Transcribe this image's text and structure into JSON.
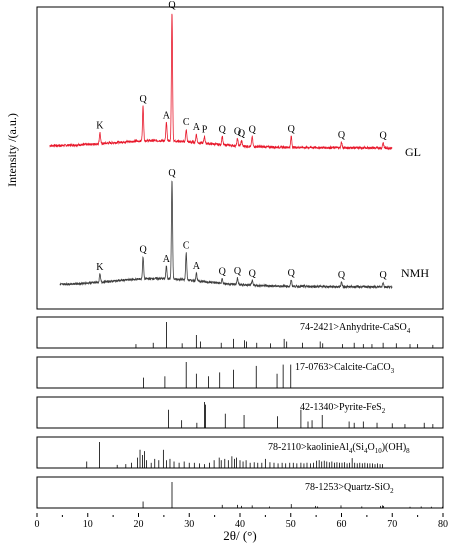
{
  "chart_data": {
    "type": "line",
    "ylabel": "Intensity /(a.u.)",
    "xlabel": "2θ/ (°)",
    "xlim": [
      0,
      80
    ],
    "x_ticks": [
      "0",
      "10",
      "20",
      "30",
      "40",
      "50",
      "60",
      "70",
      "80"
    ],
    "grid": false,
    "color_gl": "#e8192c",
    "color_nmh": "#3c3c3c",
    "series": [
      {
        "name": "GL",
        "peaks": [
          {
            "label": "K",
            "x": 12.4,
            "h": 0.08
          },
          {
            "label": "Q",
            "x": 20.9,
            "h": 0.25
          },
          {
            "label": "A",
            "x": 25.5,
            "h": 0.13
          },
          {
            "label": "Q",
            "x": 26.6,
            "h": 0.92
          },
          {
            "label": "C",
            "x": 29.4,
            "h": 0.09
          },
          {
            "label": "A",
            "x": 31.4,
            "h": 0.06
          },
          {
            "label": "P",
            "x": 33.0,
            "h": 0.05
          },
          {
            "label": "Q",
            "x": 36.5,
            "h": 0.06
          },
          {
            "label": "Q",
            "x": 39.5,
            "h": 0.05
          },
          {
            "label": "Q",
            "x": 40.3,
            "h": 0.04
          },
          {
            "label": "Q",
            "x": 42.4,
            "h": 0.07
          },
          {
            "label": "Q",
            "x": 50.1,
            "h": 0.08
          },
          {
            "label": "Q",
            "x": 60.0,
            "h": 0.04
          },
          {
            "label": "Q",
            "x": 68.2,
            "h": 0.04
          }
        ]
      },
      {
        "name": "NMH",
        "peaks": [
          {
            "label": "K",
            "x": 12.4,
            "h": 0.05
          },
          {
            "label": "Q",
            "x": 20.9,
            "h": 0.14
          },
          {
            "label": "A",
            "x": 25.5,
            "h": 0.08
          },
          {
            "label": "Q",
            "x": 26.6,
            "h": 0.62
          },
          {
            "label": "C",
            "x": 29.4,
            "h": 0.17
          },
          {
            "label": "A",
            "x": 31.4,
            "h": 0.05
          },
          {
            "label": "Q",
            "x": 36.5,
            "h": 0.03
          },
          {
            "label": "Q",
            "x": 39.5,
            "h": 0.04
          },
          {
            "label": "Q",
            "x": 42.4,
            "h": 0.03
          },
          {
            "label": "Q",
            "x": 50.1,
            "h": 0.04
          },
          {
            "label": "Q",
            "x": 60.0,
            "h": 0.03
          },
          {
            "label": "Q",
            "x": 68.2,
            "h": 0.03
          }
        ]
      }
    ],
    "reference_patterns": [
      {
        "name_parts": [
          "74-2421>Anhydrite-CaSO",
          "4",
          ""
        ],
        "lines": [
          [
            19.5,
            0.15
          ],
          [
            22.9,
            0.2
          ],
          [
            25.5,
            1.0
          ],
          [
            28.6,
            0.18
          ],
          [
            31.4,
            0.5
          ],
          [
            32.2,
            0.25
          ],
          [
            36.3,
            0.2
          ],
          [
            38.7,
            0.35
          ],
          [
            40.9,
            0.3
          ],
          [
            41.3,
            0.25
          ],
          [
            43.3,
            0.2
          ],
          [
            46.0,
            0.18
          ],
          [
            48.7,
            0.35
          ],
          [
            49.2,
            0.25
          ],
          [
            52.3,
            0.2
          ],
          [
            55.8,
            0.25
          ],
          [
            56.3,
            0.18
          ],
          [
            60.2,
            0.15
          ],
          [
            62.5,
            0.2
          ],
          [
            64.3,
            0.15
          ],
          [
            66.0,
            0.15
          ],
          [
            68.2,
            0.2
          ],
          [
            70.8,
            0.18
          ],
          [
            73.5,
            0.15
          ],
          [
            75.0,
            0.15
          ],
          [
            78.0,
            0.12
          ]
        ]
      },
      {
        "name_parts": [
          "17-0763>Calcite-CaCO",
          "3",
          ""
        ],
        "lines": [
          [
            21.0,
            0.4
          ],
          [
            25.2,
            0.45
          ],
          [
            29.4,
            1.0
          ],
          [
            31.4,
            0.55
          ],
          [
            33.8,
            0.45
          ],
          [
            36.0,
            0.6
          ],
          [
            38.7,
            0.7
          ],
          [
            43.2,
            0.85
          ],
          [
            47.3,
            0.55
          ],
          [
            48.5,
            0.9
          ],
          [
            50.0,
            0.9
          ]
        ]
      },
      {
        "name_parts": [
          "42-1340>Pyrite-FeS",
          "2",
          ""
        ],
        "lines": [
          [
            25.9,
            0.7
          ],
          [
            28.5,
            0.3
          ],
          [
            31.5,
            0.2
          ],
          [
            33.0,
            1.0
          ],
          [
            33.2,
            0.9
          ],
          [
            37.1,
            0.55
          ],
          [
            40.8,
            0.5
          ],
          [
            47.4,
            0.45
          ],
          [
            52.0,
            0.7
          ],
          [
            53.4,
            0.25
          ],
          [
            54.2,
            0.3
          ],
          [
            56.2,
            0.5
          ],
          [
            61.5,
            0.25
          ],
          [
            62.5,
            0.2
          ],
          [
            64.3,
            0.25
          ],
          [
            67.0,
            0.2
          ],
          [
            70.0,
            0.18
          ],
          [
            72.5,
            0.15
          ],
          [
            76.3,
            0.2
          ],
          [
            78.0,
            0.15
          ]
        ]
      },
      {
        "name_parts": [
          "78-2110>kaolinieAl",
          "4",
          "(Si",
          "4",
          "O",
          "10",
          ")(OH)",
          "8",
          ""
        ],
        "lines": [
          [
            9.8,
            0.25
          ],
          [
            12.3,
            1.0
          ],
          [
            15.8,
            0.12
          ],
          [
            17.5,
            0.15
          ],
          [
            18.6,
            0.2
          ],
          [
            19.8,
            0.4
          ],
          [
            20.3,
            0.7
          ],
          [
            20.8,
            0.5
          ],
          [
            21.2,
            0.65
          ],
          [
            21.6,
            0.3
          ],
          [
            22.5,
            0.2
          ],
          [
            23.2,
            0.35
          ],
          [
            24.0,
            0.3
          ],
          [
            24.9,
            0.7
          ],
          [
            25.5,
            0.3
          ],
          [
            26.2,
            0.35
          ],
          [
            27.0,
            0.25
          ],
          [
            28.0,
            0.2
          ],
          [
            29.0,
            0.25
          ],
          [
            30.0,
            0.2
          ],
          [
            31.0,
            0.2
          ],
          [
            32.0,
            0.18
          ],
          [
            33.0,
            0.15
          ],
          [
            34.0,
            0.2
          ],
          [
            34.9,
            0.3
          ],
          [
            35.9,
            0.4
          ],
          [
            36.3,
            0.3
          ],
          [
            37.0,
            0.35
          ],
          [
            37.7,
            0.3
          ],
          [
            38.4,
            0.45
          ],
          [
            38.9,
            0.35
          ],
          [
            39.3,
            0.4
          ],
          [
            40.0,
            0.3
          ],
          [
            40.6,
            0.25
          ],
          [
            41.2,
            0.3
          ],
          [
            42.0,
            0.2
          ],
          [
            42.8,
            0.22
          ],
          [
            43.5,
            0.2
          ],
          [
            44.3,
            0.2
          ],
          [
            45.0,
            0.35
          ],
          [
            45.9,
            0.22
          ],
          [
            46.7,
            0.2
          ],
          [
            47.5,
            0.18
          ],
          [
            48.3,
            0.2
          ],
          [
            49.0,
            0.18
          ],
          [
            49.8,
            0.2
          ],
          [
            50.5,
            0.2
          ],
          [
            51.2,
            0.18
          ],
          [
            52.0,
            0.2
          ],
          [
            52.6,
            0.18
          ],
          [
            53.2,
            0.2
          ],
          [
            53.9,
            0.18
          ],
          [
            54.5,
            0.2
          ],
          [
            55.1,
            0.28
          ],
          [
            55.6,
            0.3
          ],
          [
            56.1,
            0.25
          ],
          [
            56.6,
            0.28
          ],
          [
            57.1,
            0.25
          ],
          [
            57.6,
            0.22
          ],
          [
            58.1,
            0.25
          ],
          [
            58.6,
            0.2
          ],
          [
            59.1,
            0.22
          ],
          [
            59.6,
            0.2
          ],
          [
            60.1,
            0.2
          ],
          [
            60.6,
            0.22
          ],
          [
            61.1,
            0.18
          ],
          [
            61.6,
            0.2
          ],
          [
            62.1,
            0.38
          ],
          [
            62.6,
            0.2
          ],
          [
            63.1,
            0.18
          ],
          [
            63.6,
            0.2
          ],
          [
            64.1,
            0.18
          ],
          [
            64.6,
            0.2
          ],
          [
            65.1,
            0.18
          ],
          [
            65.6,
            0.18
          ],
          [
            66.1,
            0.18
          ],
          [
            66.6,
            0.15
          ],
          [
            67.1,
            0.18
          ],
          [
            67.6,
            0.15
          ],
          [
            68.1,
            0.15
          ]
        ]
      },
      {
        "name_parts": [
          "78-1253>Quartz-SiO",
          "2",
          ""
        ],
        "lines": [
          [
            20.9,
            0.25
          ],
          [
            26.6,
            1.0
          ],
          [
            36.5,
            0.12
          ],
          [
            39.5,
            0.12
          ],
          [
            40.3,
            0.08
          ],
          [
            42.4,
            0.1
          ],
          [
            45.8,
            0.06
          ],
          [
            50.1,
            0.15
          ],
          [
            54.9,
            0.08
          ],
          [
            55.3,
            0.06
          ],
          [
            59.9,
            0.1
          ],
          [
            64.0,
            0.06
          ],
          [
            67.7,
            0.08
          ],
          [
            68.1,
            0.1
          ],
          [
            68.3,
            0.08
          ],
          [
            73.5,
            0.05
          ],
          [
            75.7,
            0.06
          ],
          [
            77.7,
            0.05
          ],
          [
            79.9,
            0.05
          ]
        ]
      }
    ]
  }
}
